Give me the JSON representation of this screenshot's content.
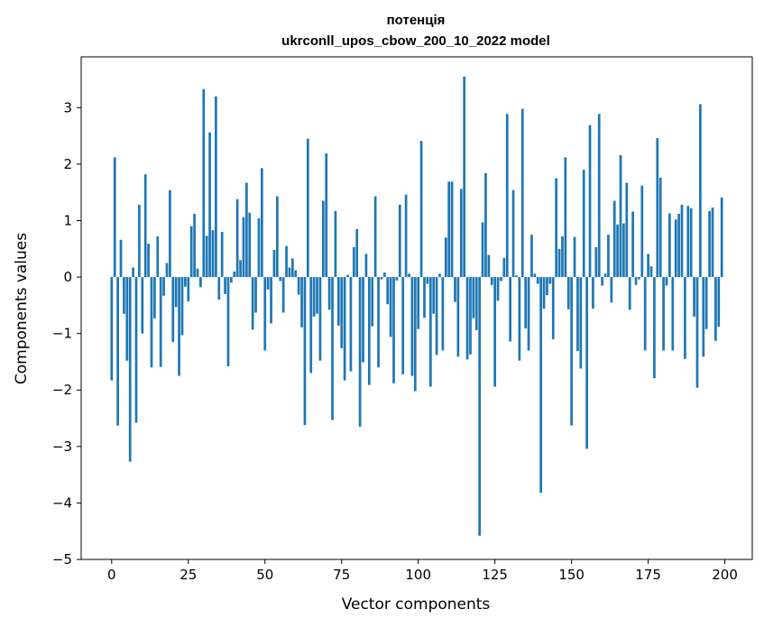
{
  "chart_data": {
    "type": "bar",
    "title_line1": "потенція",
    "title_line2": "ukrconll_upos_cbow_200_10_2022 model",
    "xlabel": "Vector components",
    "ylabel": "Components values",
    "xlim": [
      -9.95,
      208.95
    ],
    "ylim": [
      -5,
      3.9
    ],
    "xticks": [
      0,
      25,
      50,
      75,
      100,
      125,
      150,
      175,
      200
    ],
    "yticks": [
      -5,
      -4,
      -3,
      -2,
      -1,
      0,
      1,
      2,
      3
    ],
    "ytick_labels": [
      "−5",
      "−4",
      "−3",
      "−2",
      "−1",
      "0",
      "1",
      "2",
      "3"
    ],
    "bar_color": "#1f77b4",
    "x": [
      0,
      1,
      2,
      3,
      4,
      5,
      6,
      7,
      8,
      9,
      10,
      11,
      12,
      13,
      14,
      15,
      16,
      17,
      18,
      19,
      20,
      21,
      22,
      23,
      24,
      25,
      26,
      27,
      28,
      29,
      30,
      31,
      32,
      33,
      34,
      35,
      36,
      37,
      38,
      39,
      40,
      41,
      42,
      43,
      44,
      45,
      46,
      47,
      48,
      49,
      50,
      51,
      52,
      53,
      54,
      55,
      56,
      57,
      58,
      59,
      60,
      61,
      62,
      63,
      64,
      65,
      66,
      67,
      68,
      69,
      70,
      71,
      72,
      73,
      74,
      75,
      76,
      77,
      78,
      79,
      80,
      81,
      82,
      83,
      84,
      85,
      86,
      87,
      88,
      89,
      90,
      91,
      92,
      93,
      94,
      95,
      96,
      97,
      98,
      99,
      100,
      101,
      102,
      103,
      104,
      105,
      106,
      107,
      108,
      109,
      110,
      111,
      112,
      113,
      114,
      115,
      116,
      117,
      118,
      119,
      120,
      121,
      122,
      123,
      124,
      125,
      126,
      127,
      128,
      129,
      130,
      131,
      132,
      133,
      134,
      135,
      136,
      137,
      138,
      139,
      140,
      141,
      142,
      143,
      144,
      145,
      146,
      147,
      148,
      149,
      150,
      151,
      152,
      153,
      154,
      155,
      156,
      157,
      158,
      159,
      160,
      161,
      162,
      163,
      164,
      165,
      166,
      167,
      168,
      169,
      170,
      171,
      172,
      173,
      174,
      175,
      176,
      177,
      178,
      179,
      180,
      181,
      182,
      183,
      184,
      185,
      186,
      187,
      188,
      189,
      190,
      191,
      192,
      193,
      194,
      195,
      196,
      197,
      198,
      199
    ],
    "values": [
      -1.83,
      2.12,
      -2.63,
      0.66,
      -0.65,
      -1.48,
      -3.27,
      0.17,
      -2.58,
      1.28,
      -1.0,
      1.82,
      0.59,
      -1.6,
      -0.73,
      0.72,
      -1.59,
      -0.33,
      0.25,
      1.54,
      -1.15,
      -0.53,
      -1.75,
      -1.03,
      -0.17,
      -0.43,
      0.9,
      1.12,
      0.15,
      -0.18,
      3.33,
      0.73,
      2.56,
      0.83,
      3.2,
      -0.4,
      0.8,
      -0.3,
      -1.58,
      -0.1,
      0.1,
      1.38,
      0.3,
      1.06,
      1.67,
      1.14,
      -0.93,
      -0.63,
      1.04,
      1.93,
      -1.3,
      -0.22,
      -0.82,
      0.48,
      1.43,
      -0.07,
      -0.63,
      0.55,
      0.17,
      0.33,
      0.12,
      -0.31,
      -0.89,
      -2.62,
      2.45,
      -1.7,
      -0.7,
      -0.65,
      -1.48,
      1.35,
      2.19,
      -0.58,
      -2.53,
      1.17,
      -0.86,
      -1.26,
      -1.83,
      0.04,
      -1.67,
      0.53,
      0.85,
      -2.65,
      -1.51,
      0.41,
      -1.91,
      -0.87,
      1.43,
      -1.6,
      -0.04,
      0.08,
      -0.48,
      -1.06,
      -1.88,
      -0.06,
      1.28,
      -1.72,
      1.46,
      0.06,
      -1.75,
      -2.02,
      -0.92,
      2.41,
      -0.72,
      -0.12,
      -1.94,
      -0.65,
      -1.38,
      0.06,
      -1.3,
      0.7,
      1.69,
      1.69,
      -0.44,
      -1.41,
      1.56,
      3.55,
      -1.46,
      -1.37,
      -0.73,
      -0.94,
      -4.58,
      0.97,
      1.84,
      0.39,
      -0.14,
      -1.94,
      -0.42,
      -0.07,
      0.34,
      2.89,
      -1.14,
      1.54,
      0.03,
      -1.48,
      2.98,
      -0.91,
      -1.3,
      0.75,
      0.06,
      -0.12,
      -3.82,
      -0.56,
      -0.32,
      -0.12,
      -1.1,
      1.75,
      0.5,
      0.72,
      2.12,
      -0.57,
      -2.63,
      0.71,
      -1.31,
      -1.62,
      1.9,
      -3.04,
      2.69,
      -0.56,
      0.53,
      2.89,
      -0.15,
      0.06,
      0.75,
      -0.45,
      1.35,
      0.93,
      2.16,
      0.95,
      1.67,
      -0.58,
      1.16,
      -0.14,
      -0.04,
      1.62,
      -1.3,
      0.41,
      0.19,
      -1.79,
      2.46,
      1.76,
      -1.3,
      -0.15,
      1.13,
      -1.3,
      1.02,
      1.12,
      1.28,
      -1.45,
      1.26,
      1.22,
      -0.7,
      -1.96,
      3.06,
      -1.41,
      -0.92,
      1.17,
      1.23,
      -1.13,
      -0.88,
      1.41
    ]
  }
}
